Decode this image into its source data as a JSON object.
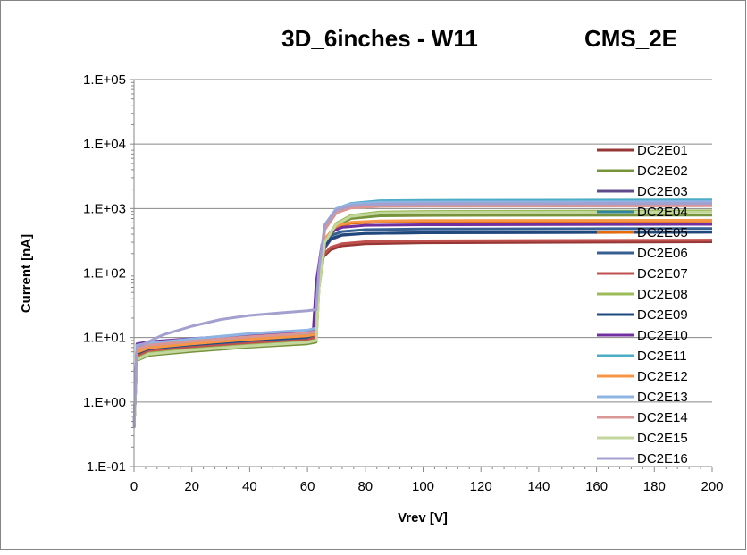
{
  "chart_data": {
    "type": "line",
    "title": "3D_6inches - W11",
    "subtitle": "CMS_2E",
    "xlabel": "Vrev [V]",
    "ylabel": "Current [nA]",
    "xlim": [
      0,
      200
    ],
    "ylim": [
      0.1,
      100000
    ],
    "yscale": "log",
    "x_ticks": [
      "0",
      "20",
      "40",
      "60",
      "80",
      "100",
      "120",
      "140",
      "160",
      "180",
      "200"
    ],
    "y_ticks": [
      "1.E-01",
      "1.E+00",
      "1.E+01",
      "1.E+02",
      "1.E+03",
      "1.E+04",
      "1.E+05"
    ],
    "grid": "horizontal",
    "legend_position": "right",
    "series": [
      {
        "name": "DC2E01",
        "color": "#953735",
        "values": [
          [
            0,
            0.4
          ],
          [
            1,
            4.6
          ],
          [
            5,
            5.6
          ],
          [
            20,
            6.5
          ],
          [
            40,
            7.6
          ],
          [
            60,
            8.6
          ],
          [
            62,
            9.5
          ],
          [
            63,
            60
          ],
          [
            65,
            170
          ],
          [
            68,
            230
          ],
          [
            72,
            265
          ],
          [
            80,
            285
          ],
          [
            100,
            295
          ],
          [
            200,
            305
          ]
        ]
      },
      {
        "name": "DC2E02",
        "color": "#77933C",
        "values": [
          [
            0,
            0.4
          ],
          [
            1,
            4.4
          ],
          [
            5,
            5.3
          ],
          [
            20,
            6.1
          ],
          [
            40,
            7.1
          ],
          [
            60,
            8.0
          ],
          [
            63,
            8.5
          ],
          [
            64,
            60
          ],
          [
            66,
            250
          ],
          [
            70,
            520
          ],
          [
            75,
            700
          ],
          [
            85,
            770
          ],
          [
            100,
            780
          ],
          [
            200,
            790
          ]
        ]
      },
      {
        "name": "DC2E03",
        "color": "#5F4B8B",
        "values": [
          [
            0,
            0.4
          ],
          [
            1,
            5.6
          ],
          [
            5,
            6.6
          ],
          [
            20,
            7.6
          ],
          [
            40,
            8.9
          ],
          [
            60,
            9.9
          ],
          [
            62,
            10.7
          ],
          [
            63,
            60
          ],
          [
            65,
            210
          ],
          [
            68,
            330
          ],
          [
            72,
            385
          ],
          [
            80,
            410
          ],
          [
            100,
            420
          ],
          [
            200,
            430
          ]
        ]
      },
      {
        "name": "DC2E04",
        "color": "#31859C",
        "values": [
          [
            0,
            0.4
          ],
          [
            1,
            6.8
          ],
          [
            5,
            7.8
          ],
          [
            20,
            9.0
          ],
          [
            40,
            10.4
          ],
          [
            60,
            11.9
          ],
          [
            63,
            12.8
          ],
          [
            64,
            90
          ],
          [
            66,
            500
          ],
          [
            70,
            960
          ],
          [
            75,
            1170
          ],
          [
            85,
            1290
          ],
          [
            100,
            1310
          ],
          [
            200,
            1320
          ]
        ]
      },
      {
        "name": "DC2E05",
        "color": "#E46C0A",
        "values": [
          [
            0,
            0.4
          ],
          [
            1,
            6.2
          ],
          [
            5,
            7.2
          ],
          [
            20,
            8.3
          ],
          [
            40,
            9.7
          ],
          [
            60,
            11.0
          ],
          [
            63,
            11.8
          ],
          [
            64,
            80
          ],
          [
            66,
            330
          ],
          [
            70,
            520
          ],
          [
            75,
            590
          ],
          [
            85,
            620
          ],
          [
            100,
            630
          ],
          [
            200,
            640
          ]
        ]
      },
      {
        "name": "DC2E06",
        "color": "#376092",
        "values": [
          [
            0,
            0.4
          ],
          [
            1,
            5.3
          ],
          [
            5,
            6.3
          ],
          [
            20,
            7.3
          ],
          [
            40,
            8.6
          ],
          [
            60,
            9.6
          ],
          [
            62,
            10.3
          ],
          [
            63,
            60
          ],
          [
            65,
            250
          ],
          [
            68,
            380
          ],
          [
            72,
            440
          ],
          [
            80,
            470
          ],
          [
            100,
            480
          ],
          [
            200,
            490
          ]
        ]
      },
      {
        "name": "DC2E07",
        "color": "#C0504D",
        "values": [
          [
            0,
            0.4
          ],
          [
            1,
            5.1
          ],
          [
            5,
            6.1
          ],
          [
            20,
            7.0
          ],
          [
            40,
            8.1
          ],
          [
            60,
            9.1
          ],
          [
            62,
            9.9
          ],
          [
            63,
            60
          ],
          [
            65,
            180
          ],
          [
            68,
            250
          ],
          [
            72,
            285
          ],
          [
            80,
            305
          ],
          [
            100,
            315
          ],
          [
            200,
            325
          ]
        ]
      },
      {
        "name": "DC2E08",
        "color": "#9BBB59",
        "values": [
          [
            0,
            0.4
          ],
          [
            1,
            4.7
          ],
          [
            5,
            5.7
          ],
          [
            20,
            6.6
          ],
          [
            40,
            7.6
          ],
          [
            60,
            8.6
          ],
          [
            63,
            9.2
          ],
          [
            64,
            60
          ],
          [
            66,
            300
          ],
          [
            70,
            590
          ],
          [
            75,
            780
          ],
          [
            85,
            880
          ],
          [
            100,
            900
          ],
          [
            200,
            920
          ]
        ]
      },
      {
        "name": "DC2E09",
        "color": "#1F497D",
        "values": [
          [
            0,
            0.4
          ],
          [
            1,
            5.7
          ],
          [
            5,
            6.7
          ],
          [
            20,
            7.8
          ],
          [
            40,
            9.1
          ],
          [
            60,
            10.2
          ],
          [
            62,
            11.0
          ],
          [
            63,
            60
          ],
          [
            65,
            230
          ],
          [
            68,
            340
          ],
          [
            72,
            390
          ],
          [
            80,
            410
          ],
          [
            100,
            420
          ],
          [
            200,
            430
          ]
        ]
      },
      {
        "name": "DC2E10",
        "color": "#7030A0",
        "values": [
          [
            0,
            0.4
          ],
          [
            1,
            8.0
          ],
          [
            5,
            8.6
          ],
          [
            20,
            9.6
          ],
          [
            40,
            11.0
          ],
          [
            60,
            12.0
          ],
          [
            62,
            13.0
          ],
          [
            63,
            70
          ],
          [
            65,
            280
          ],
          [
            68,
            430
          ],
          [
            72,
            510
          ],
          [
            80,
            550
          ],
          [
            100,
            560
          ],
          [
            200,
            570
          ]
        ]
      },
      {
        "name": "DC2E11",
        "color": "#4BACC6",
        "values": [
          [
            0,
            0.4
          ],
          [
            1,
            6.3
          ],
          [
            5,
            7.3
          ],
          [
            20,
            8.5
          ],
          [
            40,
            9.9
          ],
          [
            60,
            11.2
          ],
          [
            63,
            12.0
          ],
          [
            64,
            90
          ],
          [
            66,
            520
          ],
          [
            70,
            990
          ],
          [
            75,
            1200
          ],
          [
            85,
            1320
          ],
          [
            100,
            1340
          ],
          [
            200,
            1360
          ]
        ]
      },
      {
        "name": "DC2E12",
        "color": "#F79646",
        "values": [
          [
            0,
            0.4
          ],
          [
            1,
            5.9
          ],
          [
            5,
            6.9
          ],
          [
            20,
            8.0
          ],
          [
            40,
            9.4
          ],
          [
            60,
            10.6
          ],
          [
            63,
            11.3
          ],
          [
            64,
            80
          ],
          [
            66,
            340
          ],
          [
            70,
            540
          ],
          [
            75,
            610
          ],
          [
            85,
            640
          ],
          [
            100,
            650
          ],
          [
            200,
            660
          ]
        ]
      },
      {
        "name": "DC2E13",
        "color": "#8EB4E3",
        "values": [
          [
            0,
            0.4
          ],
          [
            1,
            7.6
          ],
          [
            5,
            8.2
          ],
          [
            20,
            9.5
          ],
          [
            40,
            11.5
          ],
          [
            60,
            13.0
          ],
          [
            63,
            14.0
          ],
          [
            64,
            100
          ],
          [
            66,
            560
          ],
          [
            70,
            1000
          ],
          [
            75,
            1180
          ],
          [
            85,
            1250
          ],
          [
            100,
            1260
          ],
          [
            200,
            1280
          ]
        ]
      },
      {
        "name": "DC2E14",
        "color": "#D99694",
        "values": [
          [
            0,
            0.4
          ],
          [
            1,
            6.6
          ],
          [
            5,
            7.6
          ],
          [
            20,
            8.8
          ],
          [
            40,
            10.3
          ],
          [
            60,
            11.7
          ],
          [
            63,
            12.6
          ],
          [
            64,
            90
          ],
          [
            66,
            470
          ],
          [
            70,
            860
          ],
          [
            75,
            1020
          ],
          [
            85,
            1080
          ],
          [
            100,
            1090
          ],
          [
            200,
            1100
          ]
        ]
      },
      {
        "name": "DC2E15",
        "color": "#C3D69B",
        "values": [
          [
            0,
            0.4
          ],
          [
            1,
            4.5
          ],
          [
            5,
            5.5
          ],
          [
            20,
            6.4
          ],
          [
            40,
            7.4
          ],
          [
            60,
            8.4
          ],
          [
            63,
            9.0
          ],
          [
            64,
            60
          ],
          [
            66,
            300
          ],
          [
            70,
            570
          ],
          [
            75,
            750
          ],
          [
            85,
            850
          ],
          [
            100,
            870
          ],
          [
            200,
            880
          ]
        ]
      },
      {
        "name": "DC2E16",
        "color": "#A3A0CF",
        "values": [
          [
            0,
            0.4
          ],
          [
            1,
            7.2
          ],
          [
            5,
            8.6
          ],
          [
            10,
            11
          ],
          [
            20,
            15
          ],
          [
            30,
            19
          ],
          [
            40,
            22
          ],
          [
            50,
            24
          ],
          [
            60,
            26
          ],
          [
            63,
            27
          ],
          [
            64,
            120
          ],
          [
            66,
            560
          ],
          [
            70,
            950
          ],
          [
            75,
            1100
          ],
          [
            85,
            1170
          ],
          [
            100,
            1180
          ],
          [
            200,
            1200
          ]
        ]
      }
    ]
  }
}
